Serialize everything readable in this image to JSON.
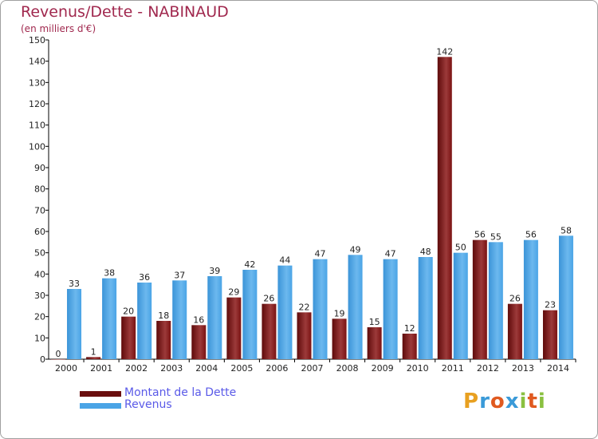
{
  "colors": {
    "debt": "#7a1212",
    "debt_light": "#9c3a3a",
    "revenue": "#4aa4e6",
    "revenue_light": "#6cb8ee",
    "title": "#a0284e",
    "legend_text": "#5a5ae8"
  },
  "chart_data": {
    "type": "bar",
    "title": "Revenus/Dette - NABINAUD",
    "subtitle": "(en milliers d'€)",
    "categories": [
      "2000",
      "2001",
      "2002",
      "2003",
      "2004",
      "2005",
      "2006",
      "2007",
      "2008",
      "2009",
      "2010",
      "2011",
      "2012",
      "2013",
      "2014"
    ],
    "series": [
      {
        "name": "Montant de la Dette",
        "values": [
          0,
          1,
          20,
          18,
          16,
          29,
          26,
          22,
          19,
          15,
          12,
          142,
          56,
          26,
          23
        ]
      },
      {
        "name": "Revenus",
        "values": [
          33,
          38,
          36,
          37,
          39,
          42,
          44,
          47,
          49,
          47,
          48,
          50,
          55,
          56,
          58
        ]
      }
    ],
    "ylim": [
      0,
      150
    ],
    "yticks": [
      0,
      10,
      20,
      30,
      40,
      50,
      60,
      70,
      80,
      90,
      100,
      110,
      120,
      130,
      140,
      150
    ],
    "grid": false,
    "legend_position": "bottom-left"
  },
  "logo": {
    "letters": [
      "P",
      "r",
      "o",
      "x",
      "i",
      "t",
      "i"
    ],
    "colors": [
      "#e8a020",
      "#3a9ad8",
      "#e05a20",
      "#3a9ad8",
      "#8ac040",
      "#e05a20",
      "#8ac040"
    ]
  }
}
